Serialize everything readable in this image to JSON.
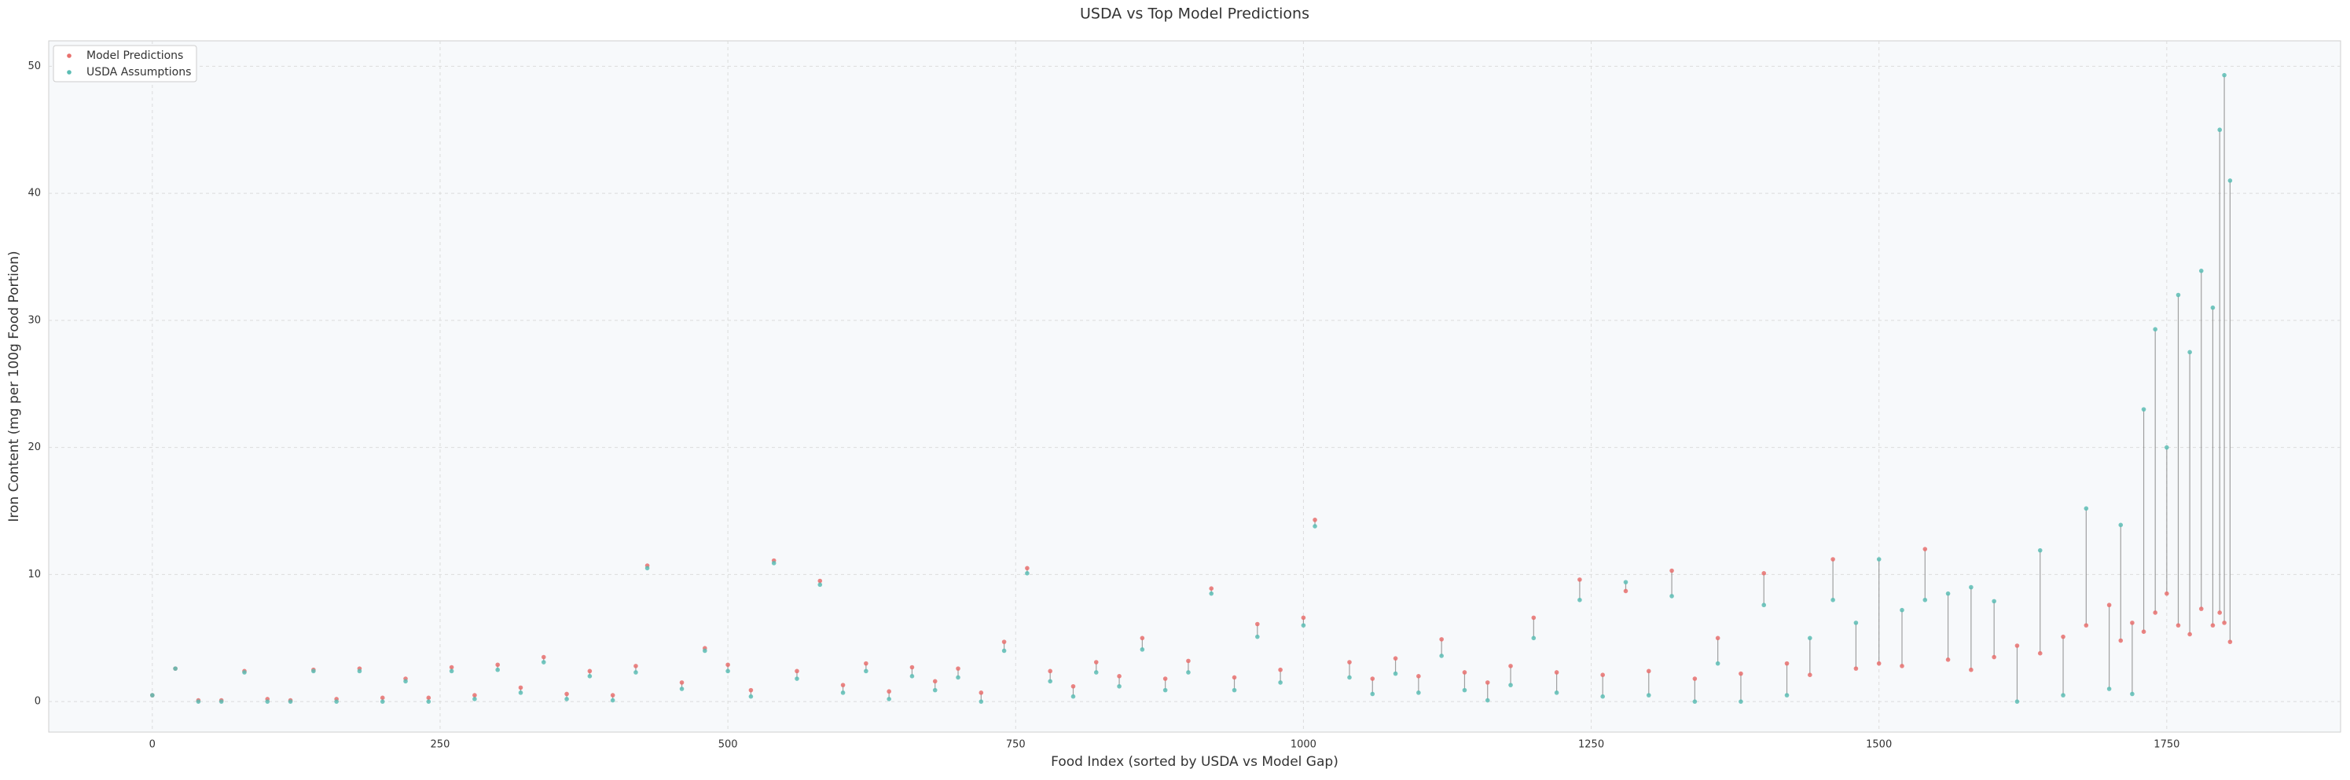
{
  "chart_data": {
    "type": "scatter",
    "title": "USDA vs Top Model Predictions",
    "x_label": "Food Index (sorted by USDA vs Model Gap)",
    "y_label": "Iron Content (mg per 100g Food Portion)",
    "x": [
      0,
      20,
      40,
      60,
      80,
      100,
      120,
      140,
      160,
      180,
      200,
      220,
      240,
      260,
      280,
      300,
      320,
      340,
      360,
      380,
      400,
      420,
      430,
      460,
      480,
      500,
      520,
      540,
      560,
      580,
      600,
      620,
      640,
      660,
      680,
      700,
      720,
      740,
      760,
      780,
      800,
      820,
      840,
      860,
      880,
      900,
      920,
      940,
      960,
      980,
      1000,
      1010,
      1040,
      1060,
      1080,
      1100,
      1120,
      1140,
      1160,
      1180,
      1200,
      1220,
      1240,
      1260,
      1280,
      1300,
      1320,
      1340,
      1360,
      1380,
      1400,
      1420,
      1440,
      1460,
      1480,
      1500,
      1520,
      1540,
      1560,
      1580,
      1600,
      1620,
      1640,
      1660,
      1680,
      1700,
      1710,
      1720,
      1730,
      1740,
      1750,
      1760,
      1770,
      1780,
      1790,
      1796,
      1800,
      1805
    ],
    "series": [
      {
        "name": "Model Predictions",
        "color": "#e8706d",
        "values": [
          0.5,
          2.6,
          0.1,
          0.1,
          2.4,
          0.2,
          0.1,
          2.5,
          0.2,
          2.6,
          0.3,
          1.8,
          0.3,
          2.7,
          0.5,
          2.9,
          1.1,
          3.5,
          0.6,
          2.4,
          0.5,
          2.8,
          10.7,
          1.5,
          4.2,
          2.9,
          0.9,
          11.1,
          2.4,
          9.5,
          1.3,
          3.0,
          0.8,
          2.7,
          1.6,
          2.6,
          0.7,
          4.7,
          10.5,
          2.4,
          1.2,
          3.1,
          2.0,
          5.0,
          1.8,
          3.2,
          8.9,
          1.9,
          6.1,
          2.5,
          6.6,
          14.3,
          3.1,
          1.8,
          3.4,
          2.0,
          4.9,
          2.3,
          1.5,
          2.8,
          6.6,
          2.3,
          9.6,
          2.1,
          8.7,
          2.4,
          10.3,
          1.8,
          5.0,
          2.2,
          10.1,
          3.0,
          2.1,
          11.2,
          2.6,
          3.0,
          2.8,
          12.0,
          3.3,
          2.5,
          3.5,
          4.4,
          3.8,
          5.1,
          6.0,
          7.6,
          4.8,
          6.2,
          5.5,
          7.0,
          8.5,
          6.0,
          5.3,
          7.3,
          6.0,
          7.0,
          6.2,
          4.7
        ]
      },
      {
        "name": "USDA Assumptions",
        "color": "#5cbdb4",
        "values": [
          0.5,
          2.6,
          0.0,
          0.0,
          2.3,
          0.0,
          0.0,
          2.4,
          0.0,
          2.4,
          0.0,
          1.6,
          0.0,
          2.4,
          0.2,
          2.5,
          0.7,
          3.1,
          0.2,
          2.0,
          0.1,
          2.3,
          10.5,
          1.0,
          4.0,
          2.4,
          0.4,
          10.9,
          1.8,
          9.2,
          0.7,
          2.4,
          0.2,
          2.0,
          0.9,
          1.9,
          0.0,
          4.0,
          10.1,
          1.6,
          0.4,
          2.3,
          1.2,
          4.1,
          0.9,
          2.3,
          8.5,
          0.9,
          5.1,
          1.5,
          6.0,
          13.8,
          1.9,
          0.6,
          2.2,
          0.7,
          3.6,
          0.9,
          0.1,
          1.3,
          5.0,
          0.7,
          8.0,
          0.4,
          9.4,
          0.5,
          8.3,
          0.0,
          3.0,
          0.0,
          7.6,
          0.5,
          5.0,
          8.0,
          6.2,
          11.2,
          7.2,
          8.0,
          8.5,
          9.0,
          7.9,
          0.0,
          11.9,
          0.5,
          15.2,
          1.0,
          13.9,
          0.6,
          23.0,
          29.3,
          20.0,
          32.0,
          27.5,
          33.9,
          31.0,
          45.0,
          49.3,
          41.0
        ]
      }
    ],
    "xlim": [
      -90,
      1901
    ],
    "ylim": [
      -2.4,
      52
    ],
    "xticks": [
      0,
      250,
      500,
      750,
      1000,
      1250,
      1500,
      1750
    ],
    "yticks": [
      0,
      10,
      20,
      30,
      40,
      50
    ],
    "grid": true,
    "legend": "upper left"
  }
}
